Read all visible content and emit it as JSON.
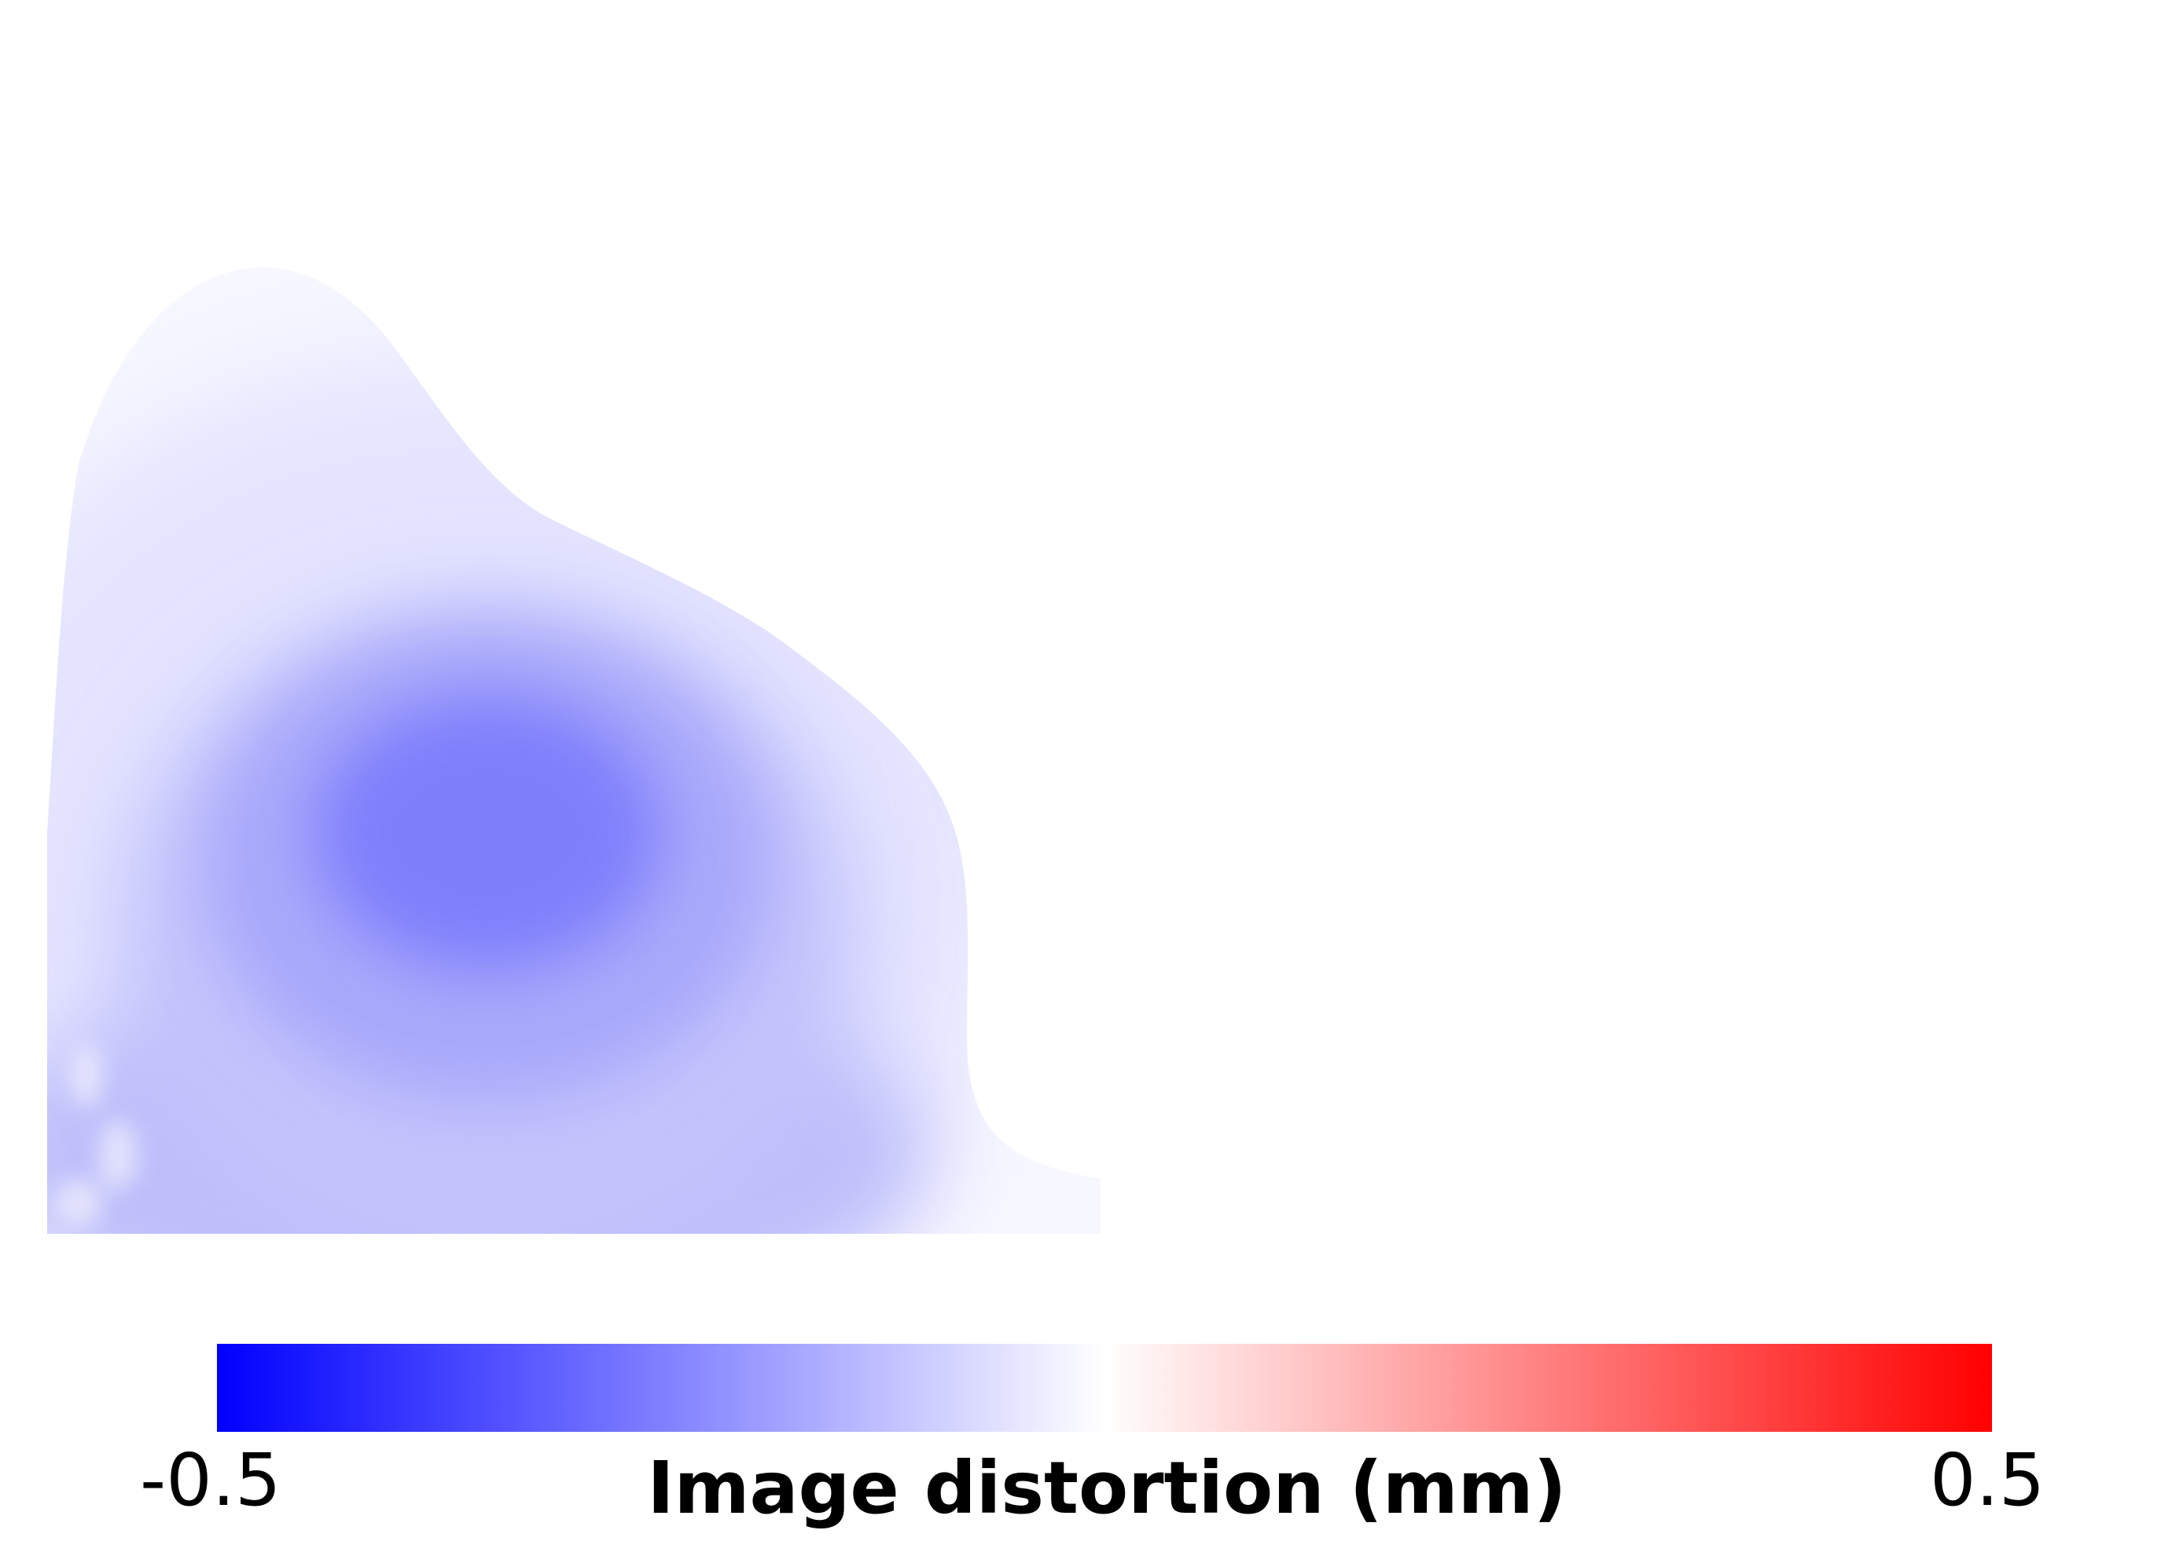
{
  "chart_data": {
    "type": "heatmap",
    "title": "",
    "xlabel": "",
    "ylabel": "",
    "grid": false,
    "colormap": "bwr",
    "colors": {
      "min": "#0000ff",
      "mid": "#ffffff",
      "max": "#ff0000"
    },
    "colorbar": {
      "label": "Image distortion (mm)",
      "min": -0.5,
      "max": 0.5,
      "min_label": "-0.5",
      "max_label": "0.5",
      "orientation": "horizontal",
      "placement": "bottom"
    },
    "field": {
      "description_values": "approximate distortion in mm, negative throughout visible region",
      "peak_value": -0.25,
      "lower_band_value": -0.13,
      "outer_value": -0.03
    }
  }
}
